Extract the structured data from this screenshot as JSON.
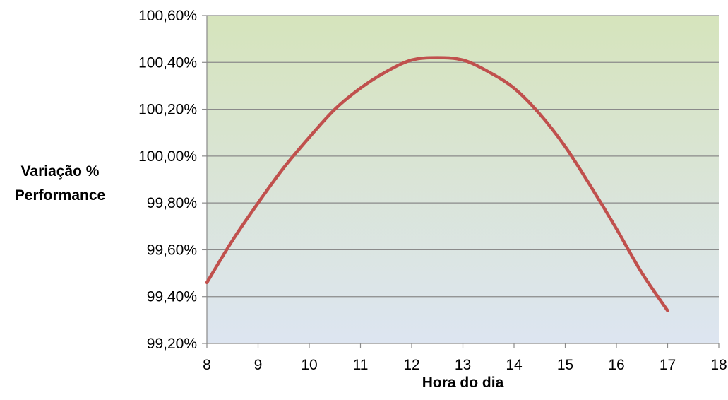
{
  "chart_data": {
    "type": "line",
    "title": "",
    "xlabel": "Hora do dia",
    "ylabel_lines": [
      "Variação %",
      "Performance"
    ],
    "xlim": [
      8,
      18
    ],
    "ylim": [
      99.2,
      100.6
    ],
    "x_ticks": [
      "8",
      "9",
      "10",
      "11",
      "12",
      "13",
      "14",
      "15",
      "16",
      "17",
      "18"
    ],
    "y_ticks": [
      "99,20%",
      "99,40%",
      "99,60%",
      "99,80%",
      "100,00%",
      "100,20%",
      "100,40%",
      "100,60%"
    ],
    "grid": true,
    "series": [
      {
        "color": "#c0504d",
        "x": [
          8,
          8.5,
          9,
          9.5,
          10,
          10.5,
          11,
          11.5,
          12,
          12.5,
          13,
          13.5,
          14,
          14.5,
          15,
          15.5,
          16,
          16.5,
          17
        ],
        "y": [
          99.46,
          99.64,
          99.8,
          99.95,
          100.08,
          100.2,
          100.29,
          100.36,
          100.41,
          100.42,
          100.41,
          100.36,
          100.29,
          100.18,
          100.04,
          99.87,
          99.69,
          99.5,
          99.34
        ]
      }
    ],
    "background_gradient": {
      "top": "#d6e4bc",
      "bottom": "#dde5f1"
    },
    "grid_color": "#8a8a8a"
  }
}
